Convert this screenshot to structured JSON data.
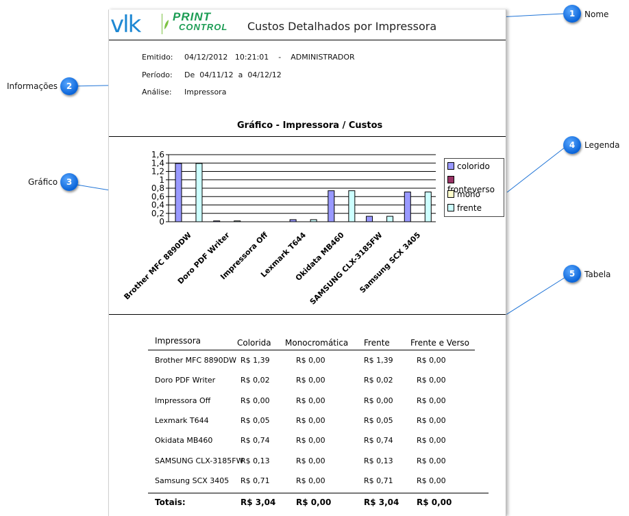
{
  "report": {
    "logo_text": "vlk",
    "logo_print": "PRINT",
    "logo_control": "CONTROL",
    "title": "Custos Detalhados por Impressora",
    "info": [
      {
        "label": "Emitido:",
        "value": "04/12/2012   10:21:01    -    ADMINISTRADOR"
      },
      {
        "label": "Período:",
        "value": "De  04/11/12  a  04/12/12"
      },
      {
        "label": "Análise:",
        "value": "Impressora"
      }
    ],
    "chart_title": "Gráfico - Impressora / Custos"
  },
  "chart_data": {
    "type": "bar",
    "title": "Gráfico - Impressora / Custos",
    "categories": [
      "Brother MFC 8890DW",
      "Doro PDF Writer",
      "Impressora Off",
      "Lexmark T644",
      "Okidata MB460",
      "SAMSUNG CLX-3185FW",
      "Samsung SCX 3405"
    ],
    "series": [
      {
        "name": "colorido",
        "color": "#9999ff",
        "values": [
          1.39,
          0.02,
          0.0,
          0.05,
          0.74,
          0.13,
          0.71
        ]
      },
      {
        "name": "fronteverso",
        "color": "#993366",
        "values": [
          0,
          0,
          0,
          0,
          0,
          0,
          0
        ]
      },
      {
        "name": "mono",
        "color": "#ffffcc",
        "values": [
          0,
          0,
          0,
          0,
          0,
          0,
          0
        ]
      },
      {
        "name": "frente",
        "color": "#ccffff",
        "values": [
          1.39,
          0.02,
          0.0,
          0.05,
          0.74,
          0.13,
          0.71
        ]
      }
    ],
    "legend_labels": [
      "colorido",
      "fronteverso",
      "mono",
      "frente"
    ],
    "y_ticks": [
      "1,6",
      "1,4",
      "1,2",
      "1",
      "0,8",
      "0,6",
      "0,4",
      "0,2",
      "0"
    ],
    "ylim": [
      0,
      1.6
    ],
    "grid": true,
    "legend": "right"
  },
  "table": {
    "headers": [
      "Impressora",
      "Colorida",
      "Monocromática",
      "Frente",
      "Frente e Verso"
    ],
    "rows": [
      [
        "Brother MFC 8890DW",
        "R$ 1,39",
        "R$ 0,00",
        "R$ 1,39",
        "R$ 0,00"
      ],
      [
        "Doro PDF Writer",
        "R$ 0,02",
        "R$ 0,00",
        "R$ 0,02",
        "R$ 0,00"
      ],
      [
        "Impressora Off",
        "R$ 0,00",
        "R$ 0,00",
        "R$ 0,00",
        "R$ 0,00"
      ],
      [
        "Lexmark T644",
        "R$ 0,05",
        "R$ 0,00",
        "R$ 0,05",
        "R$ 0,00"
      ],
      [
        "Okidata MB460",
        "R$ 0,74",
        "R$ 0,00",
        "R$ 0,74",
        "R$ 0,00"
      ],
      [
        "SAMSUNG CLX-3185FW",
        "R$ 0,13",
        "R$ 0,00",
        "R$ 0,13",
        "R$ 0,00"
      ],
      [
        "Samsung SCX 3405",
        "R$ 0,71",
        "R$ 0,00",
        "R$ 0,71",
        "R$ 0,00"
      ]
    ],
    "totals": [
      "Totais:",
      "R$ 3,04",
      "R$ 0,00",
      "R$ 3,04",
      "R$ 0,00"
    ]
  },
  "callouts": [
    {
      "number": "1",
      "label": "Nome"
    },
    {
      "number": "2",
      "label": "Informações"
    },
    {
      "number": "3",
      "label": "Gráfico"
    },
    {
      "number": "4",
      "label": "Legenda"
    },
    {
      "number": "5",
      "label": "Tabela"
    }
  ],
  "colors": {
    "callout_blue": "#0a64d8",
    "logo_blue": "#1e88d3",
    "logo_green": "#1b9c53"
  }
}
